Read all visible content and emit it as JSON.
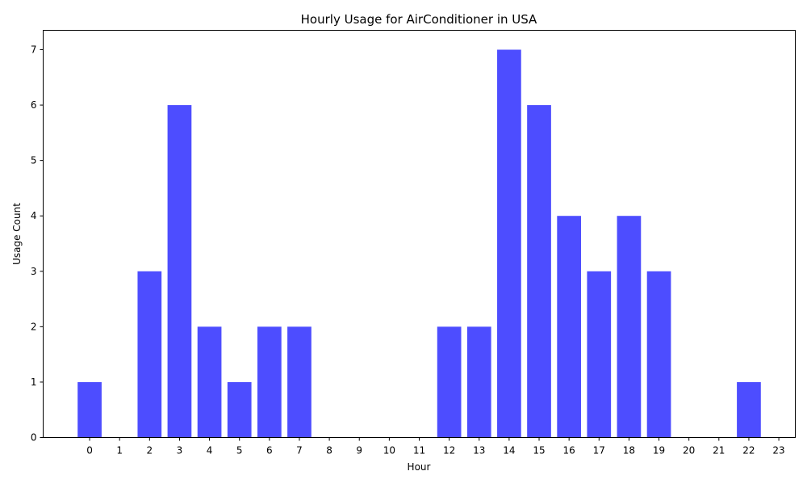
{
  "chart_data": {
    "type": "bar",
    "title": "Hourly Usage for AirConditioner in USA",
    "xlabel": "Hour",
    "ylabel": "Usage Count",
    "categories": [
      "0",
      "1",
      "2",
      "3",
      "4",
      "5",
      "6",
      "7",
      "8",
      "9",
      "10",
      "11",
      "12",
      "13",
      "14",
      "15",
      "16",
      "17",
      "18",
      "19",
      "20",
      "21",
      "22",
      "23"
    ],
    "values": [
      1,
      0,
      3,
      6,
      2,
      1,
      2,
      2,
      0,
      0,
      0,
      0,
      2,
      2,
      7,
      6,
      4,
      3,
      4,
      3,
      0,
      0,
      1,
      0
    ],
    "yticks": [
      "0",
      "1",
      "2",
      "3",
      "4",
      "5",
      "6",
      "7"
    ],
    "ylim": [
      0,
      7.35
    ],
    "xlim": [
      -1.55,
      23.55
    ],
    "grid": false,
    "bar_color": "#4d4dff"
  }
}
